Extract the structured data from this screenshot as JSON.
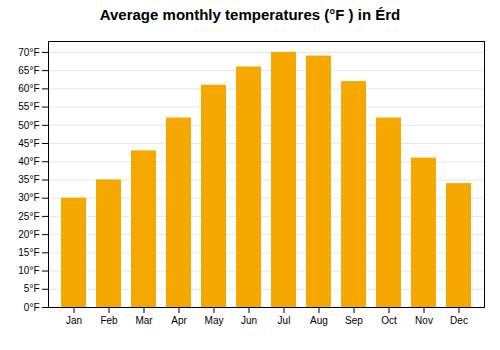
{
  "chart_data": {
    "type": "bar",
    "title": "Average monthly temperatures (°F ) in Érd",
    "categories": [
      "Jan",
      "Feb",
      "Mar",
      "Apr",
      "May",
      "Jun",
      "Jul",
      "Aug",
      "Sep",
      "Oct",
      "Nov",
      "Dec"
    ],
    "values": [
      30,
      35,
      43,
      52,
      61,
      66,
      70,
      69,
      62,
      52,
      41,
      34
    ],
    "color": "#F5A800",
    "ylim": [
      0,
      73
    ],
    "yticks": [
      {
        "value": 0,
        "label": "0°F"
      },
      {
        "value": 5,
        "label": "5°F"
      },
      {
        "value": 10,
        "label": "10°F"
      },
      {
        "value": 15,
        "label": "15°F"
      },
      {
        "value": 20,
        "label": "20°F"
      },
      {
        "value": 25,
        "label": "25°F"
      },
      {
        "value": 30,
        "label": "30°F"
      },
      {
        "value": 35,
        "label": "35°F"
      },
      {
        "value": 40,
        "label": "40°F"
      },
      {
        "value": 45,
        "label": "45°F"
      },
      {
        "value": 50,
        "label": "50°F"
      },
      {
        "value": 55,
        "label": "55°F"
      },
      {
        "value": 60,
        "label": "60°F"
      },
      {
        "value": 65,
        "label": "65°F"
      },
      {
        "value": 70,
        "label": "70°F"
      }
    ],
    "grid": true
  }
}
